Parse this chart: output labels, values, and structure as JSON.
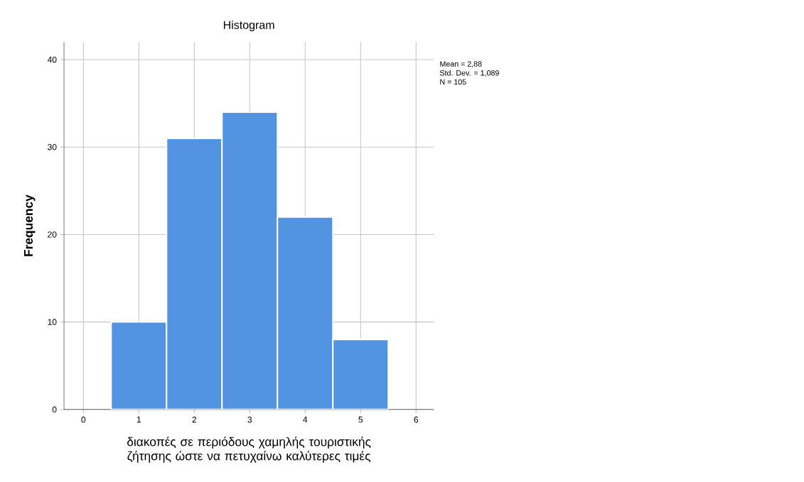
{
  "chart_data": {
    "type": "histogram",
    "title": "Histogram",
    "xlabel": "διακοπές σε περιόδους χαμηλής τουριστικής ζήτησης ώστε να πετυχαίνω καλύτερες τιμές",
    "ylabel": "Frequency",
    "bins": [
      0.5,
      1.5,
      2.5,
      3.5,
      4.5,
      5.5
    ],
    "values": [
      10,
      31,
      34,
      22,
      8
    ],
    "color": "#5294e2",
    "xlim": [
      -0.35,
      6.32
    ],
    "xticks": [
      0,
      1,
      2,
      3,
      4,
      5,
      6
    ],
    "ylim": [
      0,
      42
    ],
    "yticks": [
      0,
      10,
      20,
      30,
      40
    ],
    "grid": true,
    "annotations": [
      "Mean = 2,88",
      "Std. Dev. = 1,089",
      "N = 105"
    ]
  }
}
